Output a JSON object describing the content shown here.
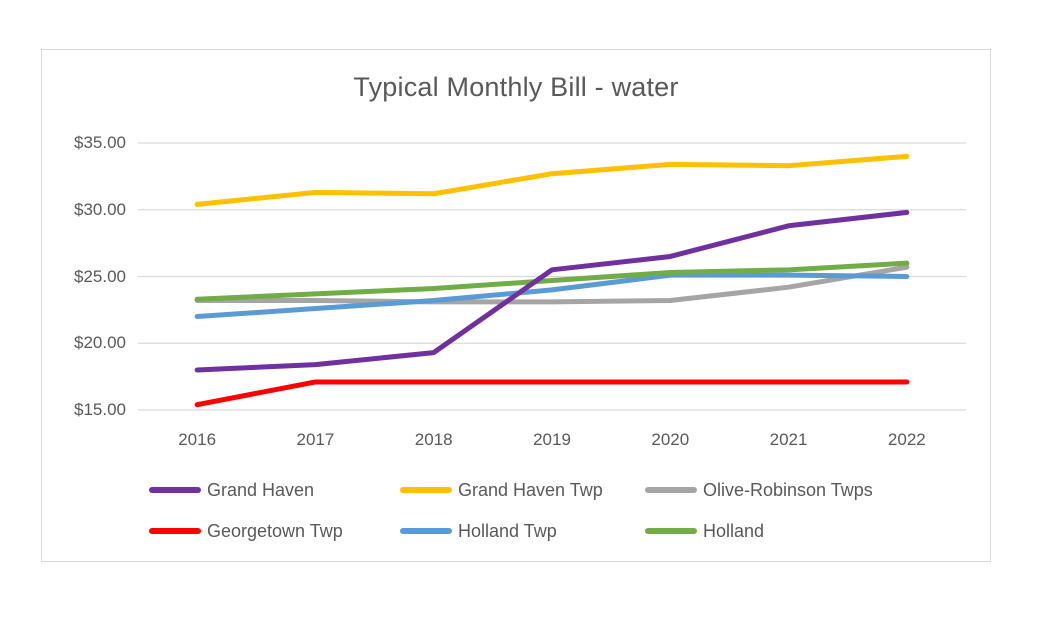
{
  "style": {
    "background": "#FFFFFF",
    "text_color": "#595959",
    "grid_color": "#D9D9D9",
    "panel_border_color": "#D9D9D9"
  },
  "chart_data": {
    "type": "line",
    "title": "Typical Monthly Bill - water",
    "categories": [
      "2016",
      "2017",
      "2018",
      "2019",
      "2020",
      "2021",
      "2022"
    ],
    "series": [
      {
        "name": "Grand Haven",
        "color": "#7030A0",
        "values": [
          18.0,
          18.4,
          19.3,
          25.5,
          26.5,
          28.8,
          29.8
        ],
        "z": 6
      },
      {
        "name": "Grand Haven Twp",
        "color": "#FFC000",
        "values": [
          30.4,
          31.3,
          31.2,
          32.7,
          33.4,
          33.3,
          34.0
        ],
        "z": 5
      },
      {
        "name": "Olive-Robinson Twps",
        "color": "#A5A5A5",
        "values": [
          23.2,
          23.2,
          23.1,
          23.1,
          23.2,
          24.2,
          25.7
        ],
        "z": 2
      },
      {
        "name": "Georgetown Twp",
        "color": "#FF0000",
        "values": [
          15.4,
          17.1,
          17.1,
          17.1,
          17.1,
          17.1,
          17.1
        ],
        "z": 1
      },
      {
        "name": "Holland Twp",
        "color": "#5B9BD5",
        "values": [
          22.0,
          22.6,
          23.2,
          24.0,
          25.1,
          25.1,
          25.0
        ],
        "z": 3
      },
      {
        "name": "Holland",
        "color": "#70AD47",
        "values": [
          23.3,
          23.7,
          24.1,
          24.7,
          25.3,
          25.5,
          26.0
        ],
        "z": 4
      }
    ],
    "ylim": [
      15,
      35
    ],
    "yticks": [
      {
        "value": 35,
        "label": "$35.00"
      },
      {
        "value": 30,
        "label": "$30.00"
      },
      {
        "value": 25,
        "label": "$25.00"
      },
      {
        "value": 20,
        "label": "$20.00"
      },
      {
        "value": 15,
        "label": "$15.00"
      }
    ],
    "grid": true,
    "markers": false,
    "legend_position": "bottom",
    "legend_rows": [
      [
        "Grand Haven",
        "Grand Haven Twp",
        "Olive-Robinson Twps"
      ],
      [
        "Georgetown Twp",
        "Holland Twp",
        "Holland"
      ]
    ]
  }
}
